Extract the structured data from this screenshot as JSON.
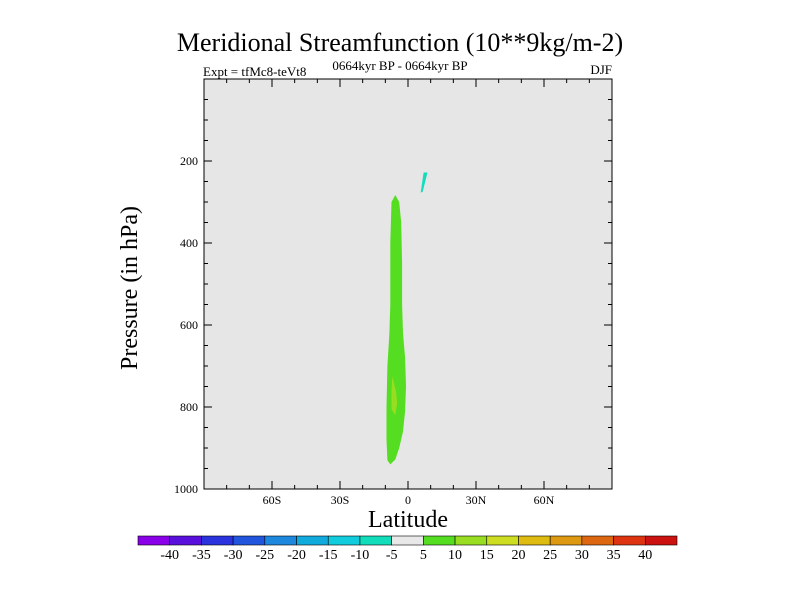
{
  "chart_data": {
    "type": "contour",
    "title": "Meridional Streamfunction (10**9kg/m-2)",
    "subtitle_left": "Expt = tfMc8-teVt8",
    "subtitle_center": "0664kyr BP - 0664kyr BP",
    "subtitle_right": "DJF",
    "xlabel": "Latitude",
    "ylabel": "Pressure (in hPa)",
    "xlim": [
      -90,
      90
    ],
    "ylim": [
      1000,
      0
    ],
    "x_ticks": [
      {
        "value": -60,
        "label": "60S"
      },
      {
        "value": -30,
        "label": "30S"
      },
      {
        "value": 0,
        "label": "0"
      },
      {
        "value": 30,
        "label": "30N"
      },
      {
        "value": 60,
        "label": "60N"
      }
    ],
    "y_ticks": [
      {
        "value": 200,
        "label": "200"
      },
      {
        "value": 400,
        "label": "400"
      },
      {
        "value": 600,
        "label": "600"
      },
      {
        "value": 800,
        "label": "800"
      },
      {
        "value": 1000,
        "label": "1000"
      }
    ],
    "background_color": "#e6e6e6",
    "regions": [
      {
        "level": "5 to 10",
        "color": "#55dd22",
        "points": [
          [
            -5.6,
            283
          ],
          [
            -3.9,
            300
          ],
          [
            -3.0,
            350
          ],
          [
            -2.6,
            450
          ],
          [
            -2.6,
            550
          ],
          [
            -2.2,
            620
          ],
          [
            -1.3,
            680
          ],
          [
            -0.9,
            750
          ],
          [
            -1.3,
            810
          ],
          [
            -2.2,
            860
          ],
          [
            -3.9,
            900
          ],
          [
            -5.6,
            928
          ],
          [
            -7.8,
            940
          ],
          [
            -9.1,
            930
          ],
          [
            -9.5,
            880
          ],
          [
            -9.5,
            800
          ],
          [
            -9.1,
            700
          ],
          [
            -8.2,
            620
          ],
          [
            -7.8,
            550
          ],
          [
            -7.8,
            400
          ],
          [
            -7.3,
            300
          ]
        ]
      },
      {
        "level": "10 to 15",
        "color": "#99dd22",
        "points": [
          [
            -6.9,
            725
          ],
          [
            -5.2,
            765
          ],
          [
            -4.8,
            790
          ],
          [
            -5.6,
            820
          ],
          [
            -7.3,
            805
          ],
          [
            -7.3,
            760
          ]
        ]
      },
      {
        "level": "-10 to -5",
        "color": "#11ddbb",
        "points": [
          [
            6.9,
            228
          ],
          [
            8.6,
            228
          ],
          [
            6.5,
            275
          ],
          [
            5.6,
            277
          ]
        ]
      }
    ],
    "colorbar": {
      "labels": [
        "-40",
        "-35",
        "-30",
        "-25",
        "-20",
        "-15",
        "-10",
        "-5",
        "5",
        "10",
        "15",
        "20",
        "25",
        "30",
        "35",
        "40"
      ],
      "colors": [
        "#8a00e8",
        "#5a10dd",
        "#2a33dd",
        "#2255dd",
        "#1d88dd",
        "#11aadd",
        "#11ccdd",
        "#11ddbb",
        "#e8e8e8",
        "#55dd22",
        "#99dd22",
        "#ccdd22",
        "#ddbb11",
        "#dd9911",
        "#dd6611",
        "#dd3311",
        "#cc1111"
      ]
    }
  }
}
